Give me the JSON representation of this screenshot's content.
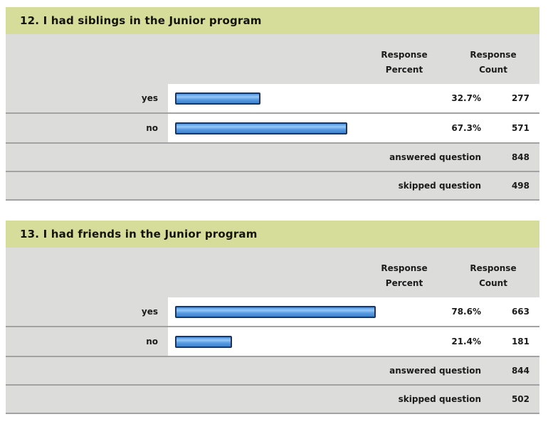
{
  "colors": {
    "question_header_bg": "#d6dd9a",
    "band_bg": "#dcdcda",
    "row_bg": "#ffffff",
    "separator": "#a2a2a2",
    "bar_fill": "#5b9de4",
    "bar_border": "#203457",
    "text": "#1b1b1b"
  },
  "labels": {
    "response": "Response",
    "percent": "Percent",
    "count": "Count"
  },
  "questions": [
    {
      "title": "12. I had siblings in the Junior program",
      "rows": [
        {
          "label": "yes",
          "percent": "32.7%",
          "percent_value": 32.7,
          "count": "277"
        },
        {
          "label": "no",
          "percent": "67.3%",
          "percent_value": 67.3,
          "count": "571"
        }
      ],
      "footer": [
        {
          "label": "answered question",
          "count": "848"
        },
        {
          "label": "skipped question",
          "count": "498"
        }
      ]
    },
    {
      "title": "13. I had friends in the Junior program",
      "rows": [
        {
          "label": "yes",
          "percent": "78.6%",
          "percent_value": 78.6,
          "count": "663"
        },
        {
          "label": "no",
          "percent": "21.4%",
          "percent_value": 21.4,
          "count": "181"
        }
      ],
      "footer": [
        {
          "label": "answered question",
          "count": "844"
        },
        {
          "label": "skipped question",
          "count": "502"
        }
      ]
    }
  ],
  "chart_data": [
    {
      "type": "bar",
      "title": "12. I had siblings in the Junior program",
      "categories": [
        "yes",
        "no"
      ],
      "series": [
        {
          "name": "Response Percent",
          "values": [
            32.7,
            67.3
          ]
        },
        {
          "name": "Response Count",
          "values": [
            277,
            571
          ]
        }
      ],
      "xlabel": "",
      "ylabel": "",
      "xlim": [
        0,
        100
      ],
      "orientation": "horizontal",
      "grid": false,
      "legend_position": "none",
      "annotations": [
        "answered question 848",
        "skipped question 498"
      ]
    },
    {
      "type": "bar",
      "title": "13. I had friends in the Junior program",
      "categories": [
        "yes",
        "no"
      ],
      "series": [
        {
          "name": "Response Percent",
          "values": [
            78.6,
            21.4
          ]
        },
        {
          "name": "Response Count",
          "values": [
            663,
            181
          ]
        }
      ],
      "xlabel": "",
      "ylabel": "",
      "xlim": [
        0,
        100
      ],
      "orientation": "horizontal",
      "grid": false,
      "legend_position": "none",
      "annotations": [
        "answered question 844",
        "skipped question 502"
      ]
    }
  ]
}
